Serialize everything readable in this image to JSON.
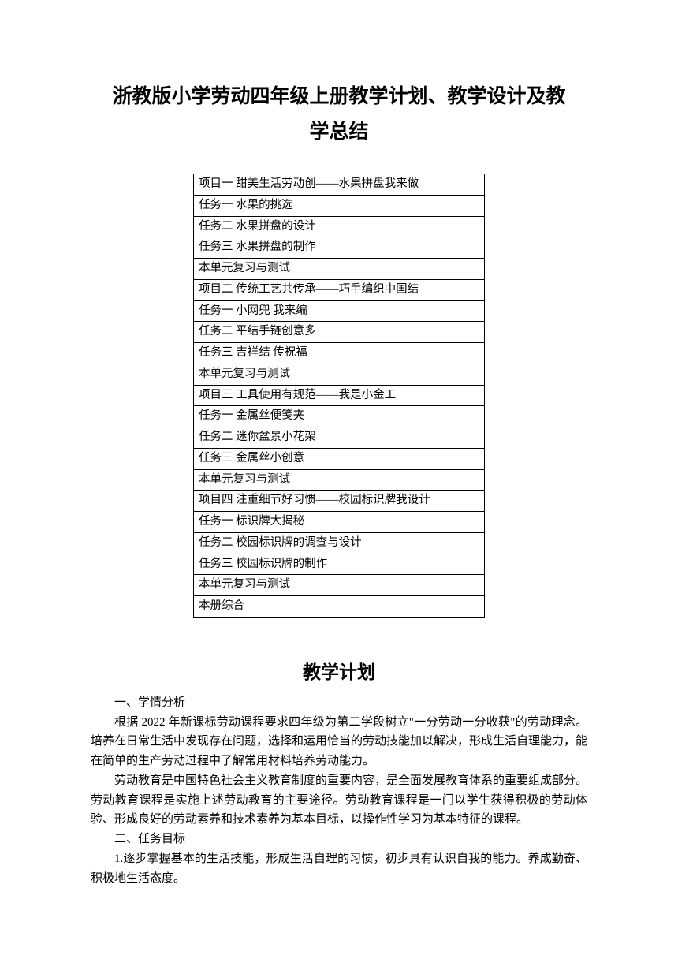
{
  "title_line1": "浙教版小学劳动四年级上册教学计划、教学设计及教",
  "title_line2": "学总结",
  "toc": [
    "项目一  甜美生活劳动创——水果拼盘我来做",
    "任务一  水果的挑选",
    "任务二  水果拼盘的设计",
    "任务三  水果拼盘的制作",
    "本单元复习与测试",
    "项目二  传统工艺共传承——巧手编织中国结",
    "任务一  小网兜  我来编",
    "任务二  平结手链创意多",
    "任务三  吉祥结  传祝福",
    "本单元复习与测试",
    "项目三  工具使用有规范——我是小金工",
    "任务一  金属丝便笺夹",
    "任务二  迷你盆景小花架",
    "任务三  金属丝小创意",
    "本单元复习与测试",
    "项目四  注重细节好习惯——校园标识牌我设计",
    "任务一  标识牌大揭秘",
    "任务二  校园标识牌的调查与设计",
    "任务三  校园标识牌的制作",
    "本单元复习与测试",
    "本册综合"
  ],
  "section_heading": "教学计划",
  "paragraphs": {
    "p1": "一、学情分析",
    "p2": "根据 2022 年新课标劳动课程要求四年级为第二学段树立\"一分劳动一分收获\"的劳动理念。培养在日常生活中发现存在问题，选择和运用恰当的劳动技能加以解决，形成生活自理能力，能在简单的生产劳动过程中了解常用材料培养劳动能力。",
    "p3": "劳动教育是中国特色社会主义教育制度的重要内容，是全面发展教育体系的重要组成部分。劳动教育课程是实施上述劳动教育的主要途径。劳动教育课程是一门以学生获得积极的劳动体验、形成良好的劳动素养和技术素养为基本目标，以操作性学习为基本特征的课程。",
    "p4": "二、任务目标",
    "p5": "1.逐步掌握基本的生活技能，形成生活自理的习惯，初步具有认识自我的能力。养成勤奋、积极地生活态度。"
  },
  "colors": {
    "text": "#000000",
    "background": "#ffffff",
    "border": "#000000"
  },
  "typography": {
    "title_fontsize": 25,
    "section_fontsize": 23,
    "body_fontsize": 15,
    "toc_fontsize": 14.5
  }
}
